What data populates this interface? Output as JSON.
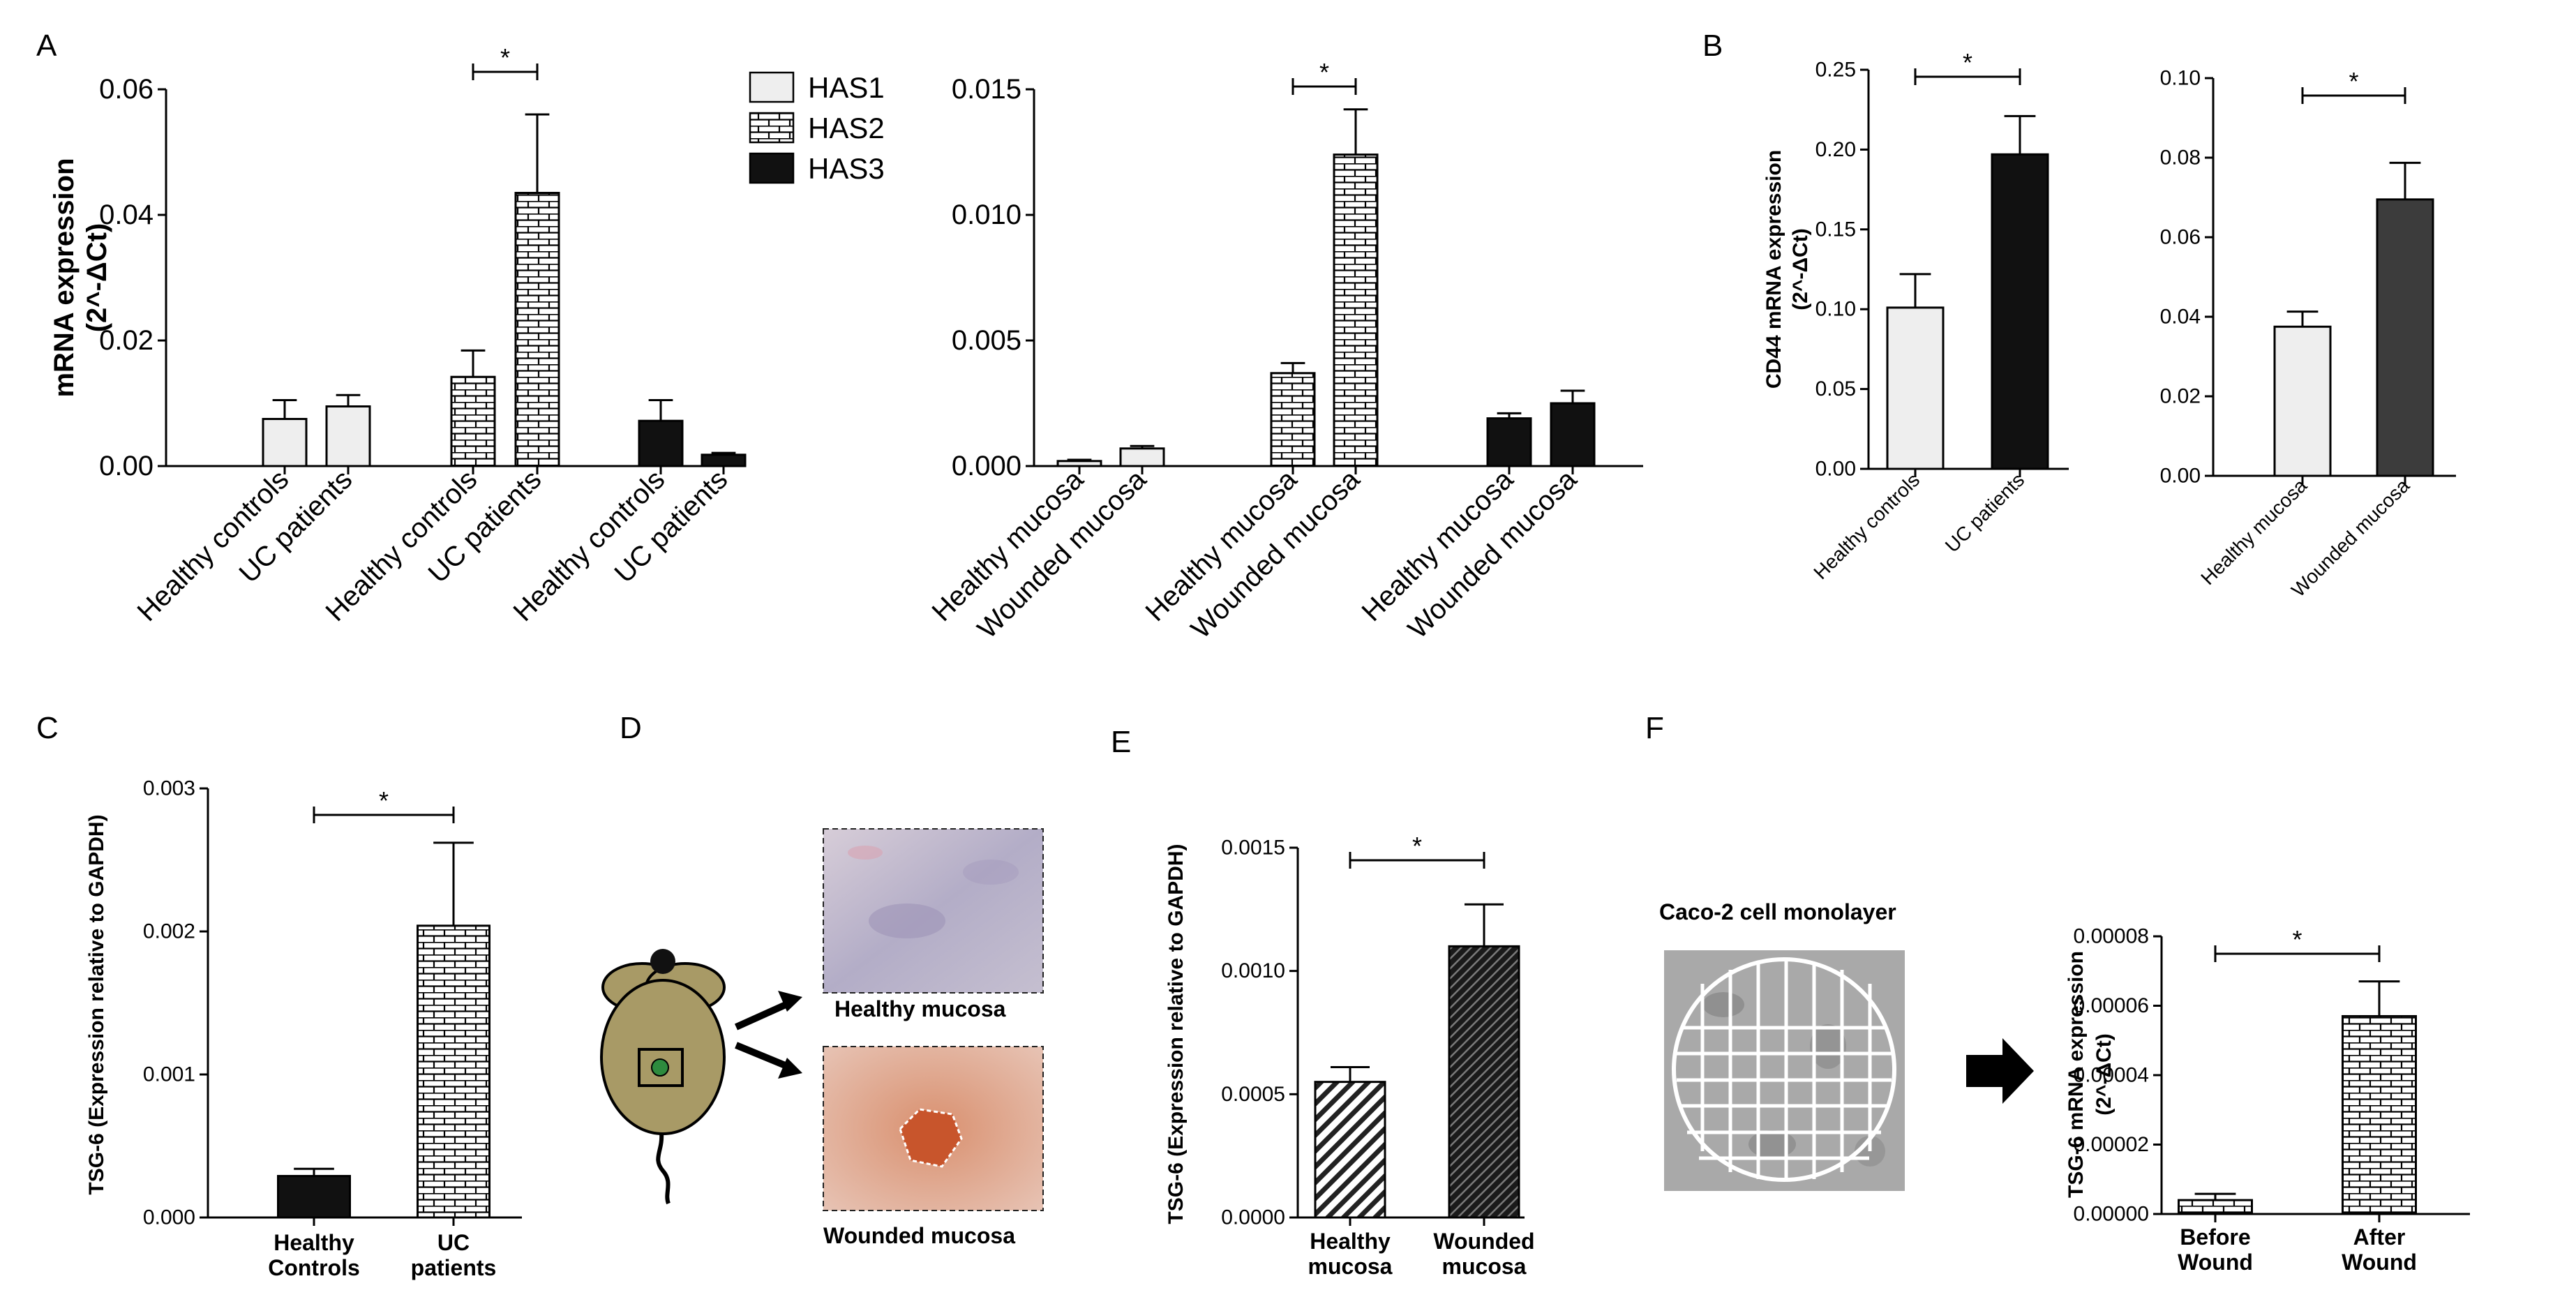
{
  "panels": {
    "A": "A",
    "B": "B",
    "C": "C",
    "D": "D",
    "E": "E",
    "F": "F"
  },
  "colors": {
    "black": "#000000",
    "light_fill": "#eeeeee",
    "dark_fill": "#111111",
    "dark_gray": "#3c3c3c",
    "tissue_healthy": "#b9b3c6",
    "tissue_wound": "#d69681",
    "wound_spot": "#c8552c",
    "mouse_body": "#a89a66",
    "mouse_dot": "#2e8b3e"
  },
  "legend": {
    "items": [
      {
        "label": "HAS1",
        "pattern": "light"
      },
      {
        "label": "HAS2",
        "pattern": "brick"
      },
      {
        "label": "HAS3",
        "pattern": "black"
      }
    ]
  },
  "chart_data": [
    {
      "id": "A1",
      "type": "bar",
      "panel": "A",
      "ylabel_line1": "mRNA expression",
      "ylabel_line2": "(2^-ΔCt)",
      "ylim": [
        0,
        0.06
      ],
      "ytick_labels": [
        "0.00",
        "0.02",
        "0.04",
        "0.06"
      ],
      "significance": "*",
      "groups": [
        {
          "series": "HAS1",
          "pattern": "light",
          "bars": [
            {
              "label": "Healthy controls",
              "value": 0.0075,
              "err": 0.003
            },
            {
              "label": "UC patients",
              "value": 0.0095,
              "err": 0.0018
            }
          ]
        },
        {
          "series": "HAS2",
          "pattern": "brick",
          "bars": [
            {
              "label": "Healthy controls",
              "value": 0.0142,
              "err": 0.0042
            },
            {
              "label": "UC patients",
              "value": 0.0435,
              "err": 0.0125
            }
          ]
        },
        {
          "series": "HAS3",
          "pattern": "black",
          "bars": [
            {
              "label": "Healthy controls",
              "value": 0.0072,
              "err": 0.0033
            },
            {
              "label": "UC patients",
              "value": 0.0018,
              "err": 0.0003
            }
          ]
        }
      ]
    },
    {
      "id": "A2",
      "type": "bar",
      "panel": "A",
      "ylim": [
        0,
        0.015
      ],
      "ytick_labels": [
        "0.000",
        "0.005",
        "0.010",
        "0.015"
      ],
      "significance": "*",
      "groups": [
        {
          "series": "HAS1",
          "pattern": "light",
          "bars": [
            {
              "label": "Healthy mucosa",
              "value": 0.0002,
              "err": 5e-05
            },
            {
              "label": "Wounded mucosa",
              "value": 0.0007,
              "err": 0.0001
            }
          ]
        },
        {
          "series": "HAS2",
          "pattern": "brick",
          "bars": [
            {
              "label": "Healthy mucosa",
              "value": 0.0037,
              "err": 0.0004
            },
            {
              "label": "Wounded mucosa",
              "value": 0.0124,
              "err": 0.0018
            }
          ]
        },
        {
          "series": "HAS3",
          "pattern": "black",
          "bars": [
            {
              "label": "Healthy mucosa",
              "value": 0.0019,
              "err": 0.0002
            },
            {
              "label": "Wounded mucosa",
              "value": 0.0025,
              "err": 0.0005
            }
          ]
        }
      ]
    },
    {
      "id": "B1",
      "type": "bar",
      "panel": "B",
      "ylabel_line1": "CD44 mRNA expression",
      "ylabel_line2": "(2^-ΔCt)",
      "ylim": [
        0,
        0.25
      ],
      "ytick_labels": [
        "0.00",
        "0.05",
        "0.10",
        "0.15",
        "0.20",
        "0.25"
      ],
      "significance": "*",
      "bars": [
        {
          "label": "Healthy controls",
          "value": 0.101,
          "err": 0.021,
          "pattern": "light"
        },
        {
          "label": "UC patients",
          "value": 0.197,
          "err": 0.024,
          "pattern": "black"
        }
      ]
    },
    {
      "id": "B2",
      "type": "bar",
      "panel": "B",
      "ylim": [
        0,
        0.1
      ],
      "ytick_labels": [
        "0.00",
        "0.02",
        "0.04",
        "0.06",
        "0.08",
        "0.10"
      ],
      "significance": "*",
      "bars": [
        {
          "label": "Healthy mucosa",
          "value": 0.0375,
          "err": 0.0038,
          "pattern": "light"
        },
        {
          "label": "Wounded mucosa",
          "value": 0.0695,
          "err": 0.0092,
          "pattern": "darkgray"
        }
      ]
    },
    {
      "id": "C",
      "type": "bar",
      "panel": "C",
      "ylabel": "TSG-6 (Expression relative to GAPDH)",
      "ylim": [
        0,
        0.003
      ],
      "ytick_labels": [
        "0.000",
        "0.001",
        "0.002",
        "0.003"
      ],
      "significance": "*",
      "bars": [
        {
          "label_line1": "Healthy",
          "label_line2": "Controls",
          "value": 0.00029,
          "err": 5e-05,
          "pattern": "black"
        },
        {
          "label_line1": "UC",
          "label_line2": "patients",
          "value": 0.00204,
          "err": 0.00058,
          "pattern": "brick"
        }
      ]
    },
    {
      "id": "E",
      "type": "bar",
      "panel": "E",
      "ylabel": "TSG-6 (Expression relative to GAPDH)",
      "ylim": [
        0,
        0.0015
      ],
      "ytick_labels": [
        "0.0000",
        "0.0005",
        "0.0010",
        "0.0015"
      ],
      "significance": "*",
      "bars": [
        {
          "label_line1": "Healthy",
          "label_line2": "mucosa",
          "value": 0.00055,
          "err": 6e-05,
          "pattern": "diag"
        },
        {
          "label_line1": "Wounded",
          "label_line2": "mucosa",
          "value": 0.0011,
          "err": 0.00017,
          "pattern": "diagdark"
        }
      ]
    },
    {
      "id": "F",
      "type": "bar",
      "panel": "F",
      "ylabel_line1": "TSG-6 mRNA expression",
      "ylabel_line2": "(2^-ΔCt)",
      "ylim": [
        0,
        8e-05
      ],
      "ytick_labels": [
        "0.00000",
        "0.00002",
        "0.00004",
        "0.00006",
        "0.00008"
      ],
      "significance": "*",
      "bars": [
        {
          "label_line1": "Before",
          "label_line2": "Wound",
          "value": 4e-06,
          "err": 1.8e-06,
          "pattern": "brick"
        },
        {
          "label_line1": "After",
          "label_line2": "Wound",
          "value": 5.7e-05,
          "err": 1e-05,
          "pattern": "brick"
        }
      ]
    }
  ],
  "panel_D": {
    "healthy_label": "Healthy mucosa",
    "wounded_label": "Wounded mucosa"
  },
  "panel_F": {
    "caption": "Caco-2 cell monolayer"
  }
}
